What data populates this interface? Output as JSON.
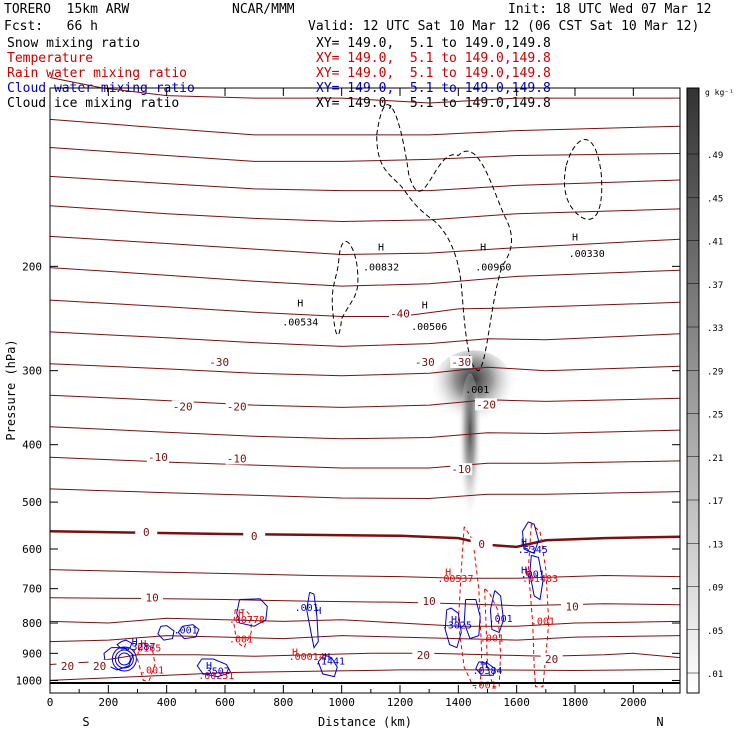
{
  "header": {
    "model": "TORERO  15km ARW",
    "fcst": "Fcst:   66 h",
    "center": "NCAR/MMM",
    "init": "Init: 18 UTC Wed 07 Mar 12",
    "valid": "Valid: 12 UTC Sat 10 Mar 12 (06 CST Sat 10 Mar 12)",
    "fields": [
      {
        "name": "Snow mixing ratio",
        "xy": "XY= 149.0,  5.1 to 149.0,149.8",
        "color": "#000000"
      },
      {
        "name": "Temperature",
        "xy": "XY= 149.0,  5.1 to 149.0,149.8",
        "color": "#cc0000"
      },
      {
        "name": "Rain water mixing ratio",
        "xy": "XY= 149.0,  5.1 to 149.0,149.8",
        "color": "#cc0000"
      },
      {
        "name": "Cloud water mixing ratio",
        "xy": "XY= 149.0,  5.1 to 149.0,149.8",
        "color": "#0000cc"
      },
      {
        "name": "Cloud ice mixing ratio",
        "xy": "XY= 149.0,  5.1 to 149.0,149.8",
        "color": "#000000"
      }
    ]
  },
  "colors": {
    "temperature": "#7a1010",
    "freezing": "#7a1010",
    "rain": "#ee0000",
    "cloud_water": "#0000cc",
    "cloud_ice": "#000000"
  },
  "chart_data": {
    "type": "cross-section",
    "xlabel": "Distance (km)",
    "ylabel": "Pressure (hPa)",
    "x_ticks": [
      0,
      200,
      400,
      600,
      800,
      1000,
      1200,
      1400,
      1600,
      1800,
      2000
    ],
    "y_ticks": [
      200,
      300,
      400,
      500,
      600,
      700,
      800,
      900,
      1000
    ],
    "xlim": [
      0,
      2160
    ],
    "ylim": [
      1050,
      100
    ],
    "y_scale": "log",
    "end_labels": [
      "S",
      "N"
    ],
    "colorbar": {
      "unit": "g kg⁻¹",
      "labels": [
        ".49",
        ".45",
        ".41",
        ".37",
        ".33",
        ".29",
        ".25",
        ".21",
        ".17",
        ".13",
        ".09",
        ".05",
        ".01"
      ]
    },
    "temperature_labels": [
      {
        "text": "-40",
        "x": 1200,
        "p": 240
      },
      {
        "text": "-30",
        "x": 580,
        "p": 290
      },
      {
        "text": "-30",
        "x": 1285,
        "p": 290
      },
      {
        "text": "-30",
        "x": 1410,
        "p": 290
      },
      {
        "text": "-20",
        "x": 455,
        "p": 345
      },
      {
        "text": "-20",
        "x": 640,
        "p": 345
      },
      {
        "text": "-20",
        "x": 1495,
        "p": 342
      },
      {
        "text": "-10",
        "x": 370,
        "p": 420
      },
      {
        "text": "-10",
        "x": 640,
        "p": 422
      },
      {
        "text": "-10",
        "x": 1410,
        "p": 440
      },
      {
        "text": "0",
        "x": 330,
        "p": 562
      },
      {
        "text": "0",
        "x": 700,
        "p": 570
      },
      {
        "text": "0",
        "x": 1480,
        "p": 588
      },
      {
        "text": "10",
        "x": 350,
        "p": 725
      },
      {
        "text": "10",
        "x": 1300,
        "p": 735
      },
      {
        "text": "10",
        "x": 1790,
        "p": 750
      },
      {
        "text": "20",
        "x": 60,
        "p": 945
      },
      {
        "text": "20",
        "x": 170,
        "p": 945
      },
      {
        "text": "20",
        "x": 1280,
        "p": 905
      },
      {
        "text": "20",
        "x": 1720,
        "p": 920
      }
    ],
    "value_labels": [
      {
        "text": "H",
        "x": 858,
        "p": 230,
        "c": "ice"
      },
      {
        "text": ".00534",
        "x": 858,
        "p": 248,
        "c": "ice"
      },
      {
        "text": "H",
        "x": 1135,
        "p": 185,
        "c": "ice"
      },
      {
        "text": ".00832",
        "x": 1135,
        "p": 200,
        "c": "ice"
      },
      {
        "text": "H",
        "x": 1285,
        "p": 232,
        "c": "ice"
      },
      {
        "text": ".00506",
        "x": 1300,
        "p": 252,
        "c": "ice"
      },
      {
        "text": "H",
        "x": 1485,
        "p": 185,
        "c": "ice"
      },
      {
        "text": ".00960",
        "x": 1520,
        "p": 200,
        "c": "ice"
      },
      {
        "text": "H",
        "x": 1800,
        "p": 178,
        "c": "ice"
      },
      {
        "text": ".00330",
        "x": 1840,
        "p": 190,
        "c": "ice"
      },
      {
        "text": ".001",
        "x": 1465,
        "p": 322,
        "c": "ice"
      },
      {
        "text": "H",
        "x": 1365,
        "p": 655,
        "c": "rain"
      },
      {
        "text": ".00537",
        "x": 1390,
        "p": 672,
        "c": "rain"
      },
      {
        "text": "H",
        "x": 1640,
        "p": 655,
        "c": "rain"
      },
      {
        "text": ".01403",
        "x": 1680,
        "p": 672,
        "c": "rain"
      },
      {
        "text": ".001",
        "x": 1690,
        "p": 792,
        "c": "rain"
      },
      {
        "text": ".001",
        "x": 1515,
        "p": 847,
        "c": "rain"
      },
      {
        "text": ".001",
        "x": 1490,
        "p": 1015,
        "c": "rain"
      },
      {
        "text": "H",
        "x": 655,
        "p": 768,
        "c": "rain"
      },
      {
        "text": ".00778",
        "x": 675,
        "p": 787,
        "c": "rain"
      },
      {
        "text": ".001",
        "x": 655,
        "p": 850,
        "c": "rain"
      },
      {
        "text": "H",
        "x": 840,
        "p": 893,
        "c": "rain"
      },
      {
        "text": ".00014",
        "x": 880,
        "p": 910,
        "c": "rain"
      },
      {
        "text": "H",
        "x": 320,
        "p": 865,
        "c": "rain"
      },
      {
        "text": ".0165",
        "x": 330,
        "p": 880,
        "c": "rain"
      },
      {
        "text": ".001",
        "x": 350,
        "p": 958,
        "c": "rain"
      },
      {
        "text": ".00251",
        "x": 570,
        "p": 980,
        "c": "rain"
      },
      {
        "text": "H",
        "x": 1625,
        "p": 583,
        "c": "water"
      },
      {
        "text": ".5345",
        "x": 1655,
        "p": 600,
        "c": "water"
      },
      {
        "text": "H",
        "x": 1625,
        "p": 650,
        "c": "water"
      },
      {
        "text": ".001",
        "x": 1655,
        "p": 660,
        "c": "water"
      },
      {
        "text": "H",
        "x": 920,
        "p": 760,
        "c": "water"
      },
      {
        "text": ".001",
        "x": 880,
        "p": 752,
        "c": "water"
      },
      {
        "text": ".001",
        "x": 465,
        "p": 820,
        "c": "water"
      },
      {
        "text": "H",
        "x": 1385,
        "p": 787,
        "c": "water"
      },
      {
        "text": ".3025",
        "x": 1395,
        "p": 805,
        "c": "water"
      },
      {
        "text": ".001",
        "x": 1545,
        "p": 785,
        "c": "water"
      },
      {
        "text": "H",
        "x": 290,
        "p": 860,
        "c": "water"
      },
      {
        "text": ".3287",
        "x": 310,
        "p": 875,
        "c": "water"
      },
      {
        "text": "H",
        "x": 545,
        "p": 942,
        "c": "water"
      },
      {
        "text": ".3507",
        "x": 565,
        "p": 962,
        "c": "water"
      },
      {
        "text": "H",
        "x": 950,
        "p": 910,
        "c": "water"
      },
      {
        "text": ".1441",
        "x": 960,
        "p": 925,
        "c": "water"
      },
      {
        "text": "H",
        "x": 1490,
        "p": 938,
        "c": "water"
      },
      {
        "text": ".0384",
        "x": 1500,
        "p": 960,
        "c": "water"
      }
    ]
  }
}
